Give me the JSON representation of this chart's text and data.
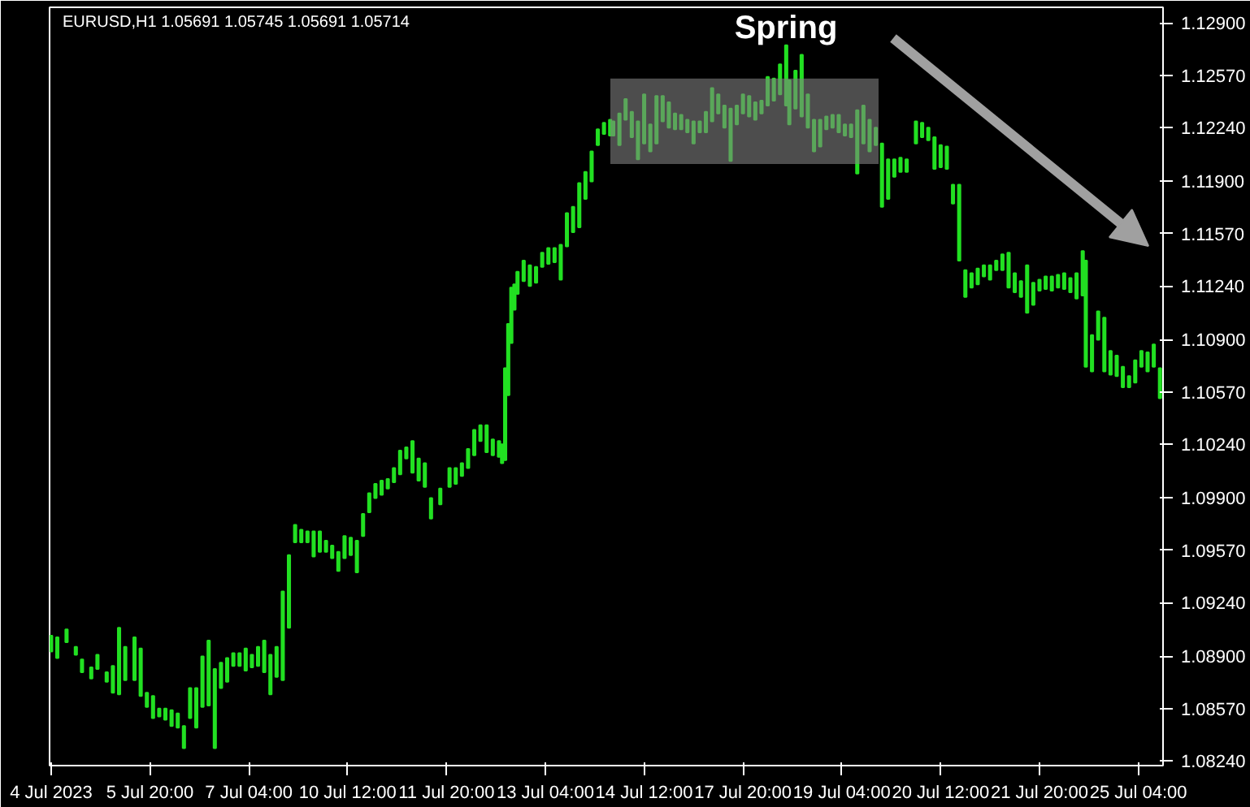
{
  "chart_data": {
    "type": "bar",
    "title": "EURUSD,H1  1.05691 1.05745 1.05691 1.05714",
    "color": "#22e022",
    "categories": [
      "4 Jul 2023",
      null,
      null,
      null,
      null,
      null,
      null,
      null,
      null,
      null,
      null,
      null,
      null,
      null,
      null,
      null,
      null,
      null,
      null,
      null,
      null,
      null,
      null,
      null,
      null,
      null,
      null,
      null,
      null,
      null,
      null,
      null,
      "5 Jul 20:00",
      null,
      null,
      null,
      null,
      null,
      null,
      null,
      null,
      null,
      null,
      null,
      null,
      null,
      null,
      null,
      null,
      null,
      null,
      null,
      null,
      null,
      null,
      null,
      null,
      null,
      null,
      null,
      null,
      null,
      null,
      null,
      "7 Jul 04:00",
      null,
      null,
      null,
      null,
      null,
      null,
      null,
      null,
      null,
      null,
      null,
      null,
      null,
      null,
      null,
      null,
      null,
      null,
      null,
      null,
      null,
      null,
      null,
      null,
      null,
      null,
      null,
      null,
      null,
      null,
      null,
      "10 Jul 12:00",
      null,
      null,
      null,
      null,
      null,
      null,
      null,
      null,
      null,
      null,
      null,
      null,
      null,
      null,
      null,
      null,
      null,
      null,
      null,
      null,
      null,
      null,
      null,
      null,
      null,
      null,
      null,
      null,
      null,
      null,
      null,
      "11 Jul 20:00",
      null,
      null,
      null,
      null,
      null,
      null,
      null,
      null,
      null,
      null,
      null,
      null,
      null,
      null,
      null,
      null,
      null,
      null,
      null,
      null,
      null,
      null,
      null,
      null,
      null,
      null,
      null,
      null,
      null,
      null,
      null,
      "13 Jul 04:00",
      null,
      null,
      null,
      null,
      null,
      null,
      null,
      null,
      null,
      null,
      null,
      null,
      null,
      null,
      null,
      null,
      null,
      null,
      null,
      null,
      null,
      null,
      null,
      null,
      null,
      null,
      null,
      null,
      null,
      null,
      null,
      "14 Jul 12:00",
      null,
      null,
      null,
      null,
      null,
      null,
      null,
      null,
      null,
      null,
      null,
      null,
      null,
      null,
      null,
      null,
      null,
      null,
      null,
      null,
      null,
      null,
      null,
      null,
      null,
      null,
      null,
      null,
      null,
      null,
      null,
      "17 Jul 20:00",
      null,
      null,
      null,
      null,
      null,
      null,
      null,
      null,
      null,
      null,
      null,
      null,
      null,
      null,
      null,
      null,
      null,
      null,
      null,
      null,
      null,
      null,
      null,
      null,
      null,
      null,
      null,
      null,
      null,
      null,
      null,
      "19 Jul 04:00",
      null,
      null,
      null,
      null,
      null,
      null,
      null,
      null,
      null,
      null,
      null,
      null,
      null,
      null,
      null,
      null,
      null,
      null,
      null,
      null,
      null,
      null,
      null,
      null,
      null,
      null,
      null,
      null,
      null,
      null,
      null,
      "20 Jul 12:00",
      null,
      null,
      null,
      null,
      null,
      null,
      null,
      null,
      null,
      null,
      null,
      null,
      null,
      null,
      null,
      null,
      null,
      null,
      null,
      null,
      null,
      null,
      null,
      null,
      null,
      null,
      null,
      null,
      null,
      null,
      null,
      "21 Jul 20:00",
      null,
      null,
      null,
      null,
      null,
      null,
      null,
      null,
      null,
      null,
      null,
      null,
      null,
      null,
      null,
      null,
      null,
      null,
      null,
      null,
      null,
      null,
      null,
      null,
      null,
      null,
      null,
      null,
      null,
      null,
      null,
      "25 Jul 04:00",
      null,
      null,
      null,
      null,
      null,
      null,
      null
    ],
    "base": [
      1.0893,
      null,
      1.0889,
      null,
      null,
      1.0899,
      null,
      null,
      1.0891,
      null,
      1.088,
      null,
      null,
      1.0876,
      null,
      1.0882,
      null,
      null,
      1.0874,
      null,
      1.0867,
      null,
      1.0866,
      null,
      1.0875,
      null,
      null,
      1.0875,
      null,
      1.0865,
      null,
      1.0858,
      null,
      1.0851,
      null,
      1.0852,
      null,
      1.085,
      null,
      1.0846,
      null,
      1.0845,
      null,
      1.0832,
      null,
      1.0851,
      null,
      1.0845,
      null,
      1.0858,
      null,
      1.0859,
      null,
      1.0832,
      null,
      1.087,
      null,
      1.0874,
      null,
      1.0884,
      null,
      1.0884,
      null,
      1.0881,
      null,
      1.0883,
      null,
      1.0884,
      null,
      1.088,
      null,
      1.0866,
      null,
      1.0877,
      null,
      1.0875,
      null,
      1.0908,
      null,
      1.0962,
      null,
      1.0962,
      null,
      1.0962,
      null,
      1.0953,
      null,
      1.0956,
      null,
      1.0956,
      null,
      1.0952,
      null,
      1.0944,
      null,
      1.0952,
      null,
      1.0954,
      null,
      1.0943,
      null,
      1.0966,
      null,
      1.0981,
      null,
      1.099,
      null,
      1.0992,
      null,
      1.0996,
      null,
      1.1,
      null,
      1.1005,
      null,
      1.1015,
      null,
      1.1006,
      null,
      1.1001,
      null,
      1.0997,
      null,
      1.0977,
      null,
      null,
      1.0986,
      null,
      null,
      1.0997,
      null,
      1.0999,
      null,
      1.1004,
      null,
      1.1009,
      null,
      1.1017,
      null,
      1.1026,
      null,
      1.1019,
      null,
      1.1017,
      null,
      1.1016,
      1.1012,
      1.1014,
      1.1055,
      1.1088,
      1.1109,
      1.1119,
      null,
      1.1127,
      null,
      1.1124,
      null,
      1.1126,
      null,
      1.1136,
      null,
      1.1138,
      null,
      1.1139,
      null,
      1.1128,
      null,
      1.1149,
      null,
      1.1158,
      null,
      1.1161,
      null,
      1.1179,
      null,
      1.119,
      null,
      1.1213,
      null,
      1.122,
      null,
      1.1219,
      1.1219,
      null,
      1.1213,
      null,
      1.1229,
      null,
      1.1218,
      null,
      1.1204,
      null,
      1.1214,
      null,
      1.1209,
      null,
      1.1214,
      null,
      1.1228,
      null,
      1.1224,
      null,
      1.1223,
      null,
      1.1223,
      null,
      1.1221,
      null,
      1.1214,
      null,
      1.1221,
      null,
      1.1221,
      null,
      1.1228,
      null,
      1.1233,
      null,
      1.1224,
      null,
      1.1203,
      null,
      1.1226,
      null,
      1.1233,
      null,
      1.1231,
      null,
      1.1229,
      null,
      1.1233,
      null,
      1.1238,
      null,
      1.1241,
      null,
      1.1245,
      null,
      1.1238,
      1.1226,
      null,
      1.1236,
      null,
      1.1231,
      null,
      1.1224,
      null,
      1.1209,
      null,
      1.1212,
      null,
      1.1223,
      null,
      1.1224,
      null,
      1.1221,
      null,
      1.1219,
      null,
      1.1218,
      null,
      1.1195,
      null,
      1.1214,
      null,
      1.1209,
      null,
      1.1213,
      null,
      1.1174,
      null,
      1.1179,
      null,
      1.1193,
      null,
      1.1196,
      null,
      1.1196,
      null,
      null,
      1.1214,
      null,
      1.1218,
      null,
      1.1216,
      null,
      1.1198,
      null,
      1.1199,
      null,
      1.1198,
      null,
      1.1176,
      null,
      1.114,
      null,
      1.1117,
      null,
      1.1123,
      null,
      1.1125,
      null,
      1.113,
      null,
      1.1128,
      null,
      1.1134,
      null,
      1.1134,
      null,
      1.1123,
      null,
      1.112,
      null,
      1.1117,
      null,
      1.1107,
      null,
      1.1112,
      null,
      1.1121,
      null,
      1.1122,
      null,
      1.1121,
      null,
      1.1123,
      null,
      1.1122,
      null,
      1.112,
      null,
      1.1116,
      null,
      1.1118,
      1.1073,
      null,
      1.107,
      null,
      1.109,
      null,
      1.107,
      null,
      1.1068,
      null,
      1.1067,
      null,
      1.106,
      null,
      1.106,
      null,
      1.1063,
      null,
      1.1073,
      null,
      1.107,
      null,
      1.1073,
      null,
      1.1053
    ],
    "values": [
      0.001,
      null,
      0.0013,
      null,
      null,
      0.0008,
      null,
      null,
      0.0005,
      null,
      0.0008,
      null,
      null,
      0.0007,
      null,
      0.0009,
      null,
      null,
      0.0006,
      null,
      0.0017,
      null,
      0.0042,
      null,
      0.0021,
      null,
      null,
      0.0027,
      null,
      0.003,
      null,
      0.0009,
      null,
      0.0014,
      null,
      0.0005,
      null,
      0.0007,
      null,
      0.001,
      null,
      0.0009,
      null,
      0.0014,
      null,
      0.0019,
      null,
      0.0025,
      null,
      0.0032,
      null,
      0.0041,
      null,
      0.005,
      null,
      0.0016,
      null,
      0.0015,
      null,
      0.0008,
      null,
      0.0008,
      null,
      0.0014,
      null,
      0.0008,
      null,
      0.0012,
      null,
      0.002,
      null,
      0.0025,
      null,
      0.0019,
      null,
      0.0056,
      null,
      0.0046,
      null,
      0.0011,
      null,
      0.0008,
      null,
      0.0007,
      null,
      0.0016,
      null,
      0.0013,
      null,
      0.0007,
      null,
      0.0008,
      null,
      0.0012,
      null,
      0.0014,
      null,
      0.0011,
      null,
      0.002,
      null,
      0.0014,
      null,
      0.0012,
      null,
      0.0009,
      null,
      0.0009,
      null,
      0.0006,
      null,
      0.0009,
      null,
      0.0015,
      null,
      0.0007,
      null,
      0.002,
      null,
      0.0014,
      null,
      0.0015,
      null,
      0.0013,
      null,
      null,
      0.001,
      null,
      null,
      0.0012,
      null,
      0.001,
      null,
      0.0008,
      null,
      0.0012,
      null,
      0.0016,
      null,
      0.001,
      null,
      0.0017,
      null,
      0.001,
      null,
      0.001,
      0.0012,
      0.0058,
      0.0045,
      0.0035,
      0.0016,
      0.0014,
      null,
      0.0013,
      null,
      0.0013,
      null,
      0.001,
      null,
      0.0009,
      null,
      0.001,
      null,
      0.0009,
      null,
      0.0022,
      null,
      0.0021,
      null,
      0.0016,
      null,
      0.0028,
      null,
      0.0017,
      null,
      0.0019,
      null,
      0.001,
      null,
      0.0007,
      null,
      0.001,
      0.0009,
      null,
      0.002,
      null,
      0.0013,
      null,
      0.0016,
      null,
      0.0024,
      null,
      0.0031,
      null,
      0.0017,
      null,
      0.003,
      null,
      0.0016,
      null,
      0.0016,
      null,
      0.001,
      null,
      0.0009,
      null,
      0.0008,
      null,
      0.0014,
      null,
      0.0007,
      null,
      0.0013,
      null,
      0.0021,
      null,
      0.0012,
      null,
      0.0014,
      null,
      0.0033,
      null,
      0.0012,
      null,
      0.0012,
      null,
      0.0013,
      null,
      0.0011,
      null,
      0.0008,
      null,
      0.0018,
      null,
      0.0014,
      null,
      0.0019,
      null,
      0.0038,
      0.0028,
      null,
      0.0024,
      null,
      0.0039,
      null,
      0.0021,
      null,
      0.002,
      null,
      0.0017,
      null,
      0.0008,
      null,
      0.0008,
      null,
      0.0011,
      null,
      0.0007,
      null,
      0.0008,
      null,
      0.004,
      null,
      0.0024,
      null,
      0.002,
      null,
      0.0011,
      null,
      0.004,
      null,
      0.0025,
      null,
      0.0011,
      null,
      0.0009,
      null,
      0.0008,
      null,
      null,
      0.0014,
      null,
      0.0009,
      null,
      0.0008,
      null,
      0.002,
      null,
      0.0014,
      null,
      0.0014,
      null,
      0.0012,
      null,
      0.0048,
      null,
      0.0017,
      null,
      0.0009,
      null,
      0.001,
      null,
      0.0007,
      null,
      0.0009,
      null,
      0.0006,
      null,
      0.001,
      null,
      0.0022,
      null,
      0.0012,
      null,
      0.001,
      null,
      0.003,
      null,
      0.0014,
      null,
      0.0007,
      null,
      0.0008,
      null,
      0.0009,
      null,
      0.0008,
      null,
      0.001,
      null,
      0.0009,
      null,
      0.0016,
      null,
      0.0028,
      0.0067,
      null,
      0.0023,
      null,
      0.0018,
      null,
      0.0034,
      null,
      0.0015,
      null,
      0.0013,
      null,
      0.0013,
      null,
      0.0007,
      null,
      0.0014,
      null,
      0.001,
      null,
      0.0012,
      null,
      0.0014,
      null,
      0.0019
    ],
    "ylim": [
      1.0821,
      1.13
    ],
    "yticks": [
      {
        "value": 1.0824,
        "label": "1.08240"
      },
      {
        "value": 1.0857,
        "label": "1.08570"
      },
      {
        "value": 1.089,
        "label": "1.08900"
      },
      {
        "value": 1.0924,
        "label": "1.09240"
      },
      {
        "value": 1.0957,
        "label": "1.09570"
      },
      {
        "value": 1.099,
        "label": "1.09900"
      },
      {
        "value": 1.1024,
        "label": "1.10240"
      },
      {
        "value": 1.1057,
        "label": "1.10570"
      },
      {
        "value": 1.109,
        "label": "1.10900"
      },
      {
        "value": 1.1124,
        "label": "1.11240"
      },
      {
        "value": 1.1157,
        "label": "1.11570"
      },
      {
        "value": 1.119,
        "label": "1.11900"
      },
      {
        "value": 1.1224,
        "label": "1.12240"
      },
      {
        "value": 1.1257,
        "label": "1.12570"
      },
      {
        "value": 1.129,
        "label": "1.12900"
      }
    ],
    "bands": [
      {
        "axis": "y",
        "from": 1.1201,
        "to": 1.1255,
        "label": "Spring",
        "color": "#808080"
      }
    ]
  }
}
